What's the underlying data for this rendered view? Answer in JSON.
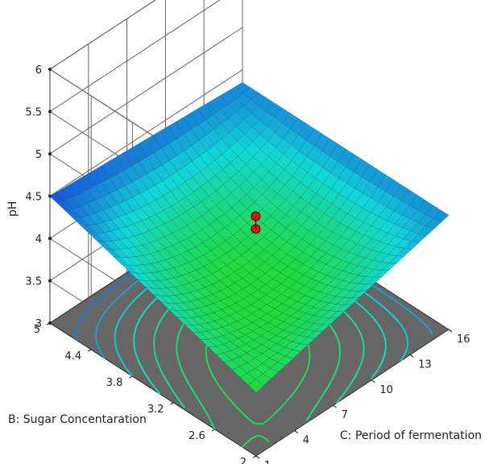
{
  "chart_data": {
    "type": "surface3d",
    "zlabel": "pH",
    "ylabel": "B: Sugar Concentaration",
    "xlabel": "C: Period of fermentation",
    "z_ticks": [
      "3",
      "3.5",
      "4",
      "4.5",
      "5",
      "5.5",
      "6"
    ],
    "y_ticks": [
      "2",
      "2.6",
      "3.2",
      "3.8",
      "4.4",
      "5"
    ],
    "x_ticks": [
      "1",
      "4",
      "7",
      "10",
      "13",
      "16"
    ],
    "zlim": [
      3,
      6
    ],
    "ylim": [
      2,
      5
    ],
    "xlim": [
      1,
      16
    ],
    "surface_corners": [
      {
        "x": 1,
        "y": 5,
        "z": 4.5
      },
      {
        "x": 16,
        "y": 2,
        "z": 4.35
      },
      {
        "x": 16,
        "y": 5,
        "z": 4.35
      },
      {
        "x": 1,
        "y": 2,
        "z": 3.75
      }
    ],
    "surface_min_z": 3.75,
    "design_points": [
      {
        "x": 9,
        "y": 3.5,
        "z": 4.25
      },
      {
        "x": 9,
        "y": 3.5,
        "z": 4.1
      }
    ],
    "colors": {
      "surface_low": "#22d93a",
      "surface_mid": "#11d8d8",
      "surface_high": "#1a3fdb",
      "floor": "#666666",
      "point": "#d61a1a"
    }
  }
}
